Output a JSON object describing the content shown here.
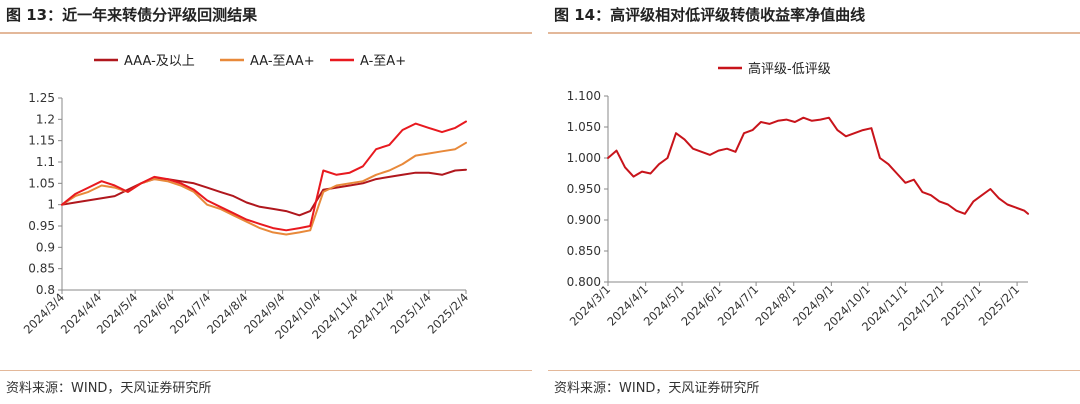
{
  "charts": [
    {
      "figure_title": "图 13：近一年来转债分评级回测结果",
      "source": "资料来源：WIND，天风证券研究所"
    },
    {
      "figure_title": "图 14：高评级相对低评级转债收益率净值曲线",
      "source": "资料来源：WIND，天风证券研究所"
    }
  ],
  "chart_data": [
    {
      "type": "line",
      "title": "图 13：近一年来转债分评级回测结果",
      "xlabel": "",
      "ylabel": "",
      "ylim": [
        0.8,
        1.25
      ],
      "yticks": [
        "0.8",
        "0.85",
        "0.9",
        "0.95",
        "1",
        "1.05",
        "1.1",
        "1.15",
        "1.2",
        "1.25"
      ],
      "xlim": [
        "2024-03-04",
        "2025-02-04"
      ],
      "xticks": [
        "2024/3/4",
        "2024/4/4",
        "2024/5/4",
        "2024/6/4",
        "2024/7/4",
        "2024/8/4",
        "2024/9/4",
        "2024/10/4",
        "2024/11/4",
        "2024/12/4",
        "2025/1/4",
        "2025/2/4"
      ],
      "grid": false,
      "legend": "top",
      "series": [
        {
          "name": "AAA-及以上",
          "color": "#b0171d",
          "x": [
            "2024-03-04",
            "2024-03-15",
            "2024-03-26",
            "2024-04-06",
            "2024-04-17",
            "2024-04-28",
            "2024-05-09",
            "2024-05-20",
            "2024-05-31",
            "2024-06-11",
            "2024-06-22",
            "2024-07-03",
            "2024-07-14",
            "2024-07-25",
            "2024-08-05",
            "2024-08-16",
            "2024-08-27",
            "2024-09-07",
            "2024-09-18",
            "2024-09-27",
            "2024-10-08",
            "2024-10-19",
            "2024-10-30",
            "2024-11-10",
            "2024-11-21",
            "2024-12-02",
            "2024-12-13",
            "2024-12-24",
            "2025-01-04",
            "2025-01-15",
            "2025-01-26",
            "2025-02-04"
          ],
          "y": [
            1.0,
            1.005,
            1.01,
            1.015,
            1.02,
            1.035,
            1.05,
            1.06,
            1.06,
            1.055,
            1.05,
            1.04,
            1.03,
            1.02,
            1.005,
            0.995,
            0.99,
            0.985,
            0.975,
            0.985,
            1.035,
            1.04,
            1.045,
            1.05,
            1.06,
            1.065,
            1.07,
            1.075,
            1.075,
            1.07,
            1.08,
            1.082
          ]
        },
        {
          "name": "AA-至AA+",
          "color": "#e8893a",
          "x": [
            "2024-03-04",
            "2024-03-15",
            "2024-03-26",
            "2024-04-06",
            "2024-04-17",
            "2024-04-28",
            "2024-05-09",
            "2024-05-20",
            "2024-05-31",
            "2024-06-11",
            "2024-06-22",
            "2024-07-03",
            "2024-07-14",
            "2024-07-25",
            "2024-08-05",
            "2024-08-16",
            "2024-08-27",
            "2024-09-07",
            "2024-09-18",
            "2024-09-27",
            "2024-10-08",
            "2024-10-19",
            "2024-10-30",
            "2024-11-10",
            "2024-11-21",
            "2024-12-02",
            "2024-12-13",
            "2024-12-24",
            "2025-01-04",
            "2025-01-15",
            "2025-01-26",
            "2025-02-04"
          ],
          "y": [
            1.0,
            1.02,
            1.03,
            1.045,
            1.04,
            1.03,
            1.05,
            1.06,
            1.055,
            1.045,
            1.03,
            1.0,
            0.99,
            0.975,
            0.96,
            0.945,
            0.935,
            0.93,
            0.935,
            0.94,
            1.03,
            1.045,
            1.05,
            1.055,
            1.07,
            1.08,
            1.095,
            1.115,
            1.12,
            1.125,
            1.13,
            1.145
          ]
        },
        {
          "name": "A-至A+",
          "color": "#e8191f",
          "x": [
            "2024-03-04",
            "2024-03-15",
            "2024-03-26",
            "2024-04-06",
            "2024-04-17",
            "2024-04-28",
            "2024-05-09",
            "2024-05-20",
            "2024-05-31",
            "2024-06-11",
            "2024-06-22",
            "2024-07-03",
            "2024-07-14",
            "2024-07-25",
            "2024-08-05",
            "2024-08-16",
            "2024-08-27",
            "2024-09-07",
            "2024-09-18",
            "2024-09-27",
            "2024-10-08",
            "2024-10-19",
            "2024-10-30",
            "2024-11-10",
            "2024-11-21",
            "2024-12-02",
            "2024-12-13",
            "2024-12-24",
            "2025-01-04",
            "2025-01-15",
            "2025-01-26",
            "2025-02-04"
          ],
          "y": [
            1.0,
            1.025,
            1.04,
            1.055,
            1.045,
            1.03,
            1.05,
            1.065,
            1.06,
            1.05,
            1.035,
            1.01,
            0.995,
            0.98,
            0.965,
            0.955,
            0.945,
            0.94,
            0.945,
            0.95,
            1.08,
            1.07,
            1.075,
            1.09,
            1.13,
            1.14,
            1.175,
            1.19,
            1.18,
            1.17,
            1.18,
            1.195
          ]
        }
      ]
    },
    {
      "type": "line",
      "title": "图 14：高评级相对低评级转债收益率净值曲线",
      "xlabel": "",
      "ylabel": "",
      "ylim": [
        0.8,
        1.1
      ],
      "yticks": [
        "0.800",
        "0.850",
        "0.900",
        "0.950",
        "1.000",
        "1.050",
        "1.100"
      ],
      "xlim": [
        "2024-03-01",
        "2025-02-10"
      ],
      "xticks": [
        "2024/3/1",
        "2024/4/1",
        "2024/5/1",
        "2024/6/1",
        "2024/7/1",
        "2024/8/1",
        "2024/9/1",
        "2024/10/1",
        "2024/11/1",
        "2024/12/1",
        "2025/1/1",
        "2025/2/1"
      ],
      "grid": false,
      "legend": "top",
      "series": [
        {
          "name": "高评级-低评级",
          "color": "#c8141b",
          "x": [
            "2024-03-01",
            "2024-03-08",
            "2024-03-15",
            "2024-03-22",
            "2024-03-29",
            "2024-04-05",
            "2024-04-12",
            "2024-04-19",
            "2024-04-26",
            "2024-05-03",
            "2024-05-10",
            "2024-05-17",
            "2024-05-24",
            "2024-05-31",
            "2024-06-07",
            "2024-06-14",
            "2024-06-21",
            "2024-06-28",
            "2024-07-05",
            "2024-07-12",
            "2024-07-19",
            "2024-07-26",
            "2024-08-02",
            "2024-08-09",
            "2024-08-16",
            "2024-08-23",
            "2024-08-30",
            "2024-09-06",
            "2024-09-13",
            "2024-09-20",
            "2024-09-27",
            "2024-10-04",
            "2024-10-11",
            "2024-10-18",
            "2024-10-25",
            "2024-11-01",
            "2024-11-08",
            "2024-11-15",
            "2024-11-22",
            "2024-11-29",
            "2024-12-06",
            "2024-12-13",
            "2024-12-20",
            "2024-12-27",
            "2025-01-03",
            "2025-01-10",
            "2025-01-17",
            "2025-01-24",
            "2025-01-31",
            "2025-02-07",
            "2025-02-10"
          ],
          "y": [
            1.0,
            1.012,
            0.985,
            0.97,
            0.978,
            0.975,
            0.99,
            1.0,
            1.04,
            1.03,
            1.015,
            1.01,
            1.005,
            1.012,
            1.015,
            1.01,
            1.04,
            1.045,
            1.058,
            1.055,
            1.06,
            1.062,
            1.058,
            1.065,
            1.06,
            1.062,
            1.065,
            1.045,
            1.035,
            1.04,
            1.045,
            1.048,
            1.0,
            0.99,
            0.975,
            0.96,
            0.965,
            0.945,
            0.94,
            0.93,
            0.925,
            0.915,
            0.91,
            0.93,
            0.94,
            0.95,
            0.935,
            0.925,
            0.92,
            0.915,
            0.91
          ]
        }
      ]
    }
  ]
}
